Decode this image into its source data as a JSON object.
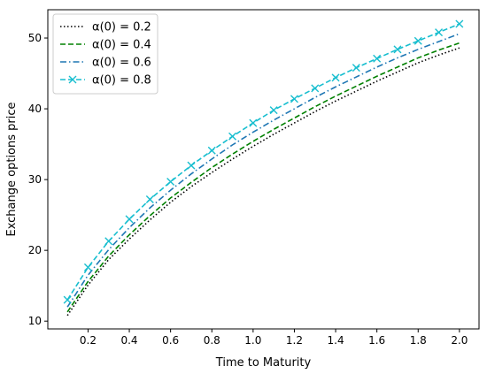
{
  "chart_data": {
    "type": "line",
    "title": "",
    "xlabel": "Time to Maturity",
    "ylabel": "Exchange options price",
    "xlim": [
      0.005,
      2.095
    ],
    "ylim": [
      8.9,
      54.0
    ],
    "x_ticks": [
      0.2,
      0.4,
      0.6,
      0.8,
      1.0,
      1.2,
      1.4,
      1.6,
      1.8,
      2.0
    ],
    "x_tick_labels": [
      "0.2",
      "0.4",
      "0.6",
      "0.8",
      "1.0",
      "1.2",
      "1.4",
      "1.6",
      "1.8",
      "2.0"
    ],
    "y_ticks": [
      10,
      20,
      30,
      40,
      50
    ],
    "y_tick_labels": [
      "10",
      "20",
      "30",
      "40",
      "50"
    ],
    "grid": false,
    "legend_position": "top-left",
    "x": [
      0.1,
      0.2,
      0.3,
      0.4,
      0.5,
      0.6,
      0.7,
      0.8,
      0.9,
      1.0,
      1.1,
      1.2,
      1.3,
      1.4,
      1.5,
      1.6,
      1.7,
      1.8,
      1.9,
      2.0
    ],
    "series": [
      {
        "name": "α(0) = 0.2",
        "color": "#000000",
        "dash": "dotted",
        "marker": "none",
        "values": [
          10.8,
          15.1,
          18.7,
          21.6,
          24.3,
          26.8,
          29.0,
          31.0,
          32.9,
          34.7,
          36.4,
          38.0,
          39.6,
          41.1,
          42.5,
          43.9,
          45.2,
          46.5,
          47.6,
          48.6
        ]
      },
      {
        "name": "α(0) = 0.4",
        "color": "#008000",
        "dash": "dashed",
        "marker": "none",
        "values": [
          11.3,
          15.6,
          19.2,
          22.2,
          24.9,
          27.4,
          29.6,
          31.7,
          33.6,
          35.4,
          37.1,
          38.7,
          40.3,
          41.8,
          43.2,
          44.6,
          45.9,
          47.2,
          48.3,
          49.3
        ]
      },
      {
        "name": "α(0) = 0.6",
        "color": "#1f77b4",
        "dash": "dashdot",
        "marker": "none",
        "values": [
          12.0,
          16.5,
          20.1,
          23.2,
          26.0,
          28.5,
          30.8,
          32.9,
          34.9,
          36.7,
          38.4,
          40.0,
          41.6,
          43.1,
          44.5,
          45.9,
          47.2,
          48.4,
          49.5,
          50.6
        ]
      },
      {
        "name": "α(0) = 0.8",
        "color": "#17becf",
        "dash": "dashed",
        "marker": "x",
        "values": [
          13.0,
          17.6,
          21.3,
          24.4,
          27.2,
          29.7,
          32.0,
          34.1,
          36.1,
          38.0,
          39.8,
          41.4,
          42.9,
          44.4,
          45.8,
          47.1,
          48.4,
          49.6,
          50.8,
          52.0
        ]
      }
    ]
  }
}
